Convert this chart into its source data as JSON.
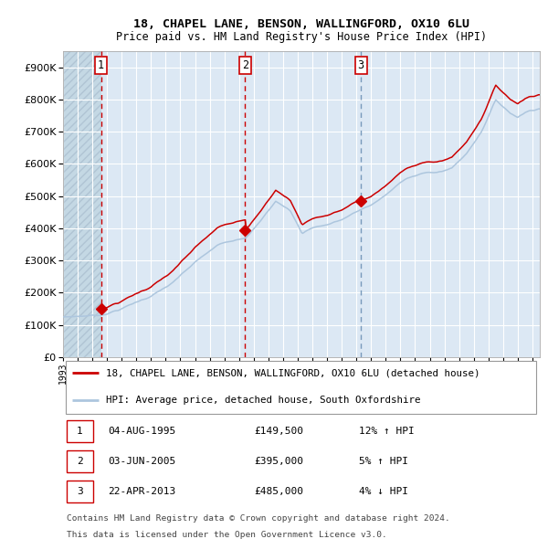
{
  "title1": "18, CHAPEL LANE, BENSON, WALLINGFORD, OX10 6LU",
  "title2": "Price paid vs. HM Land Registry's House Price Index (HPI)",
  "purchases": [
    {
      "date": "04-AUG-1995",
      "price": 149500,
      "label": "1",
      "pct": "12%",
      "dir": "↑"
    },
    {
      "date": "03-JUN-2005",
      "price": 395000,
      "label": "2",
      "pct": "5%",
      "dir": "↑"
    },
    {
      "date": "22-APR-2013",
      "price": 485000,
      "label": "3",
      "pct": "4%",
      "dir": "↓"
    }
  ],
  "purchase_dates_decimal": [
    1995.585,
    2005.42,
    2013.31
  ],
  "legend_line1": "18, CHAPEL LANE, BENSON, WALLINGFORD, OX10 6LU (detached house)",
  "legend_line2": "HPI: Average price, detached house, South Oxfordshire",
  "footnote1": "Contains HM Land Registry data © Crown copyright and database right 2024.",
  "footnote2": "This data is licensed under the Open Government Licence v3.0.",
  "hpi_color": "#adc6de",
  "price_color": "#cc0000",
  "vline_color_red": "#cc0000",
  "vline_color_blue": "#7799bb",
  "bg_color": "#dce8f4",
  "ylim": [
    0,
    950000
  ],
  "xlim_start": 1993.0,
  "xlim_end": 2025.5
}
